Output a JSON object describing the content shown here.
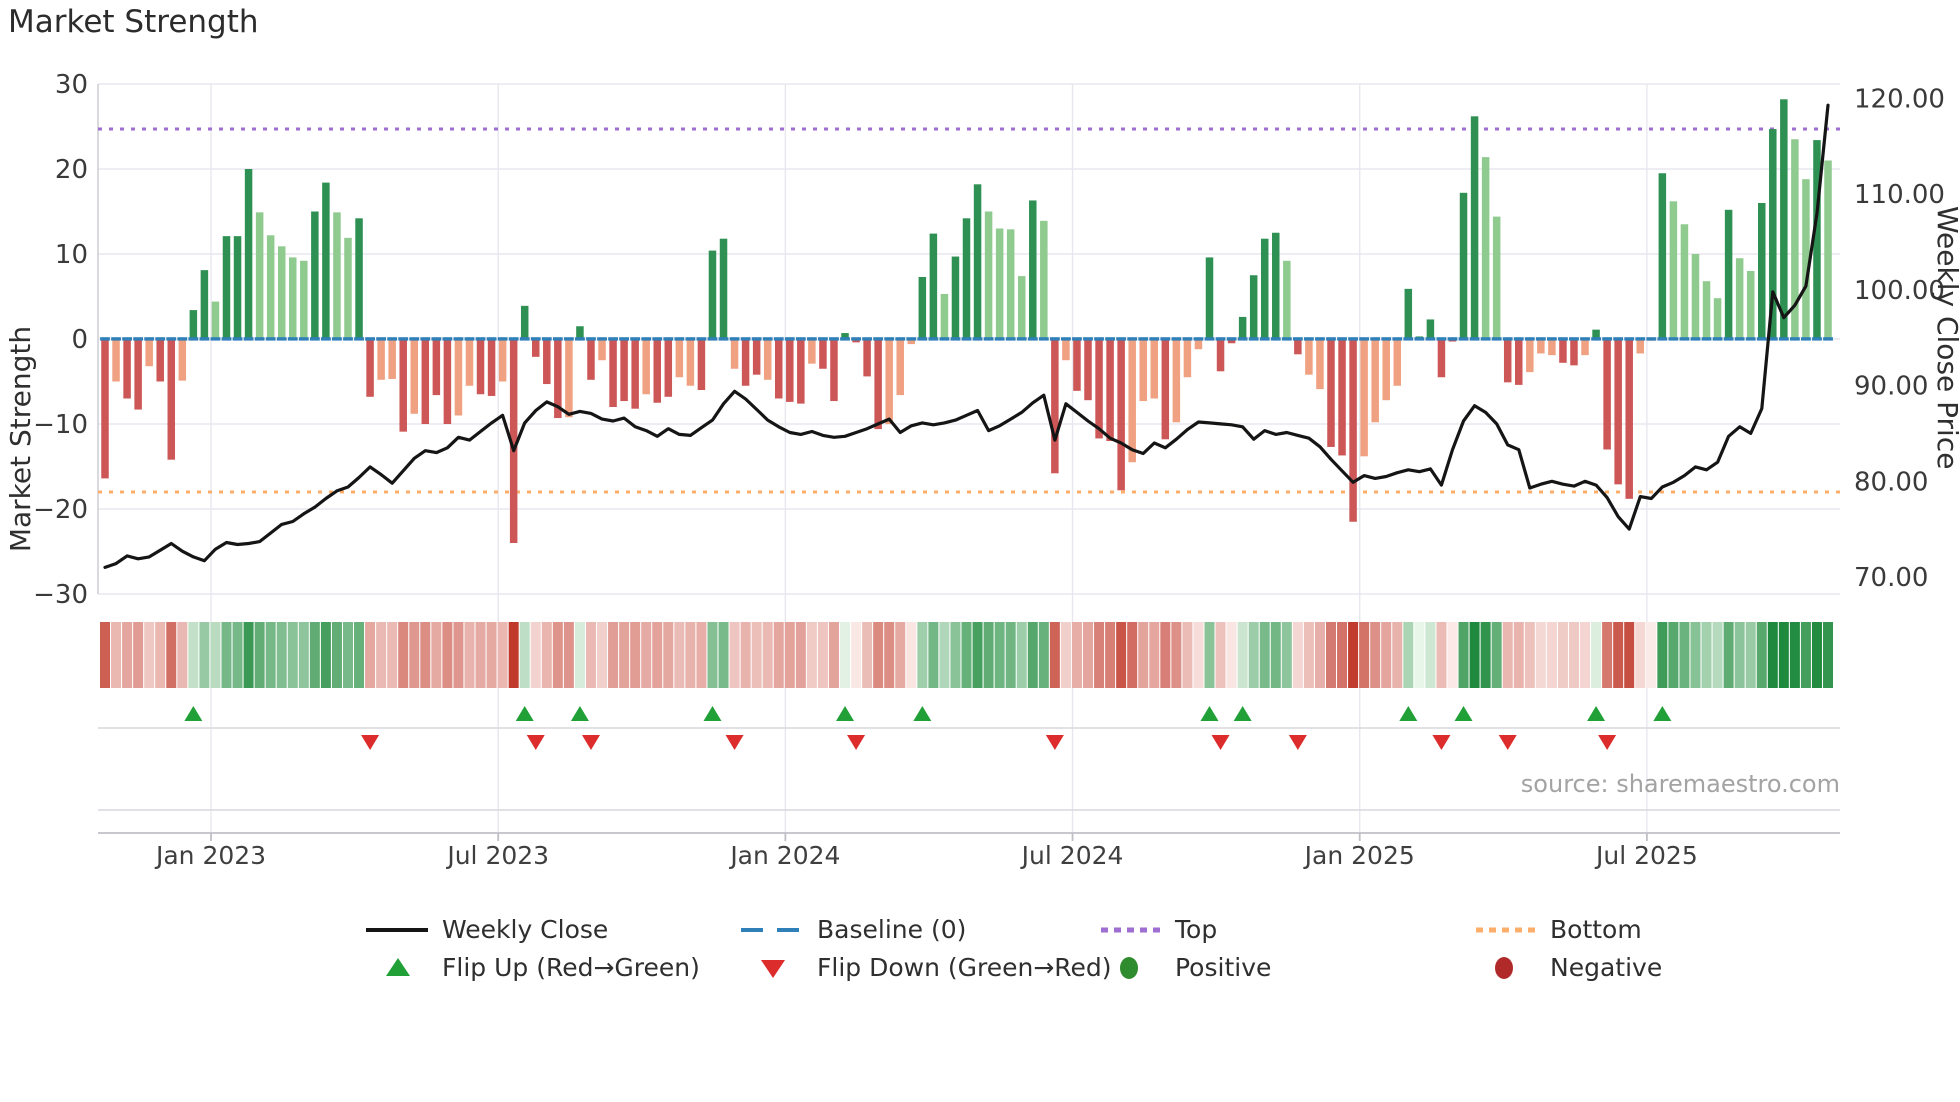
{
  "title": "Market Strength",
  "source": "source: sharemaestro.com",
  "left_axis": {
    "label": "Market Strength",
    "ticks": [
      "30",
      "20",
      "10",
      "0",
      "−10",
      "−20",
      "−30"
    ],
    "tick_values": [
      30,
      20,
      10,
      0,
      -10,
      -20,
      -30
    ]
  },
  "right_axis": {
    "label": "Weekly Close Price",
    "ticks": [
      "120.00",
      "110.00",
      "100.00",
      "90.00",
      "80.00",
      "70.00"
    ],
    "tick_values": [
      120,
      110,
      100,
      90,
      80,
      70
    ]
  },
  "x_axis": {
    "ticks": [
      "Jan 2023",
      "Jul 2023",
      "Jan 2024",
      "Jul 2024",
      "Jan 2025",
      "Jul 2025"
    ],
    "tick_week_index": [
      9.6,
      35.6,
      61.6,
      87.6,
      113.6,
      139.6
    ]
  },
  "legend": {
    "row1": [
      {
        "label": "Weekly Close",
        "swatch": "line-black"
      },
      {
        "label": "Baseline (0)",
        "swatch": "dash-blue"
      },
      {
        "label": "Top",
        "swatch": "dot-purple"
      },
      {
        "label": "Bottom",
        "swatch": "dot-orange"
      }
    ],
    "row2": [
      {
        "label": "Flip Up (Red→Green)",
        "swatch": "triangle-up-green"
      },
      {
        "label": "Flip Down (Green→Red)",
        "swatch": "triangle-down-red"
      },
      {
        "label": "Positive",
        "swatch": "circle-green"
      },
      {
        "label": "Negative",
        "swatch": "circle-darkred"
      }
    ]
  },
  "colors": {
    "bar_green_dark": "#2e9153",
    "bar_green_light": "#8fca8f",
    "bar_red_dark": "#cd5757",
    "bar_red_light": "#f0a181",
    "baseline_blue": "#2f7fb8",
    "top_purple": "#9e6fd0",
    "bottom_orange": "#fdae6b",
    "line_black": "#151515",
    "flip_green": "#21a038",
    "flip_red": "#dd2c2c",
    "positive_dot": "#2e8b2e",
    "negative_dot": "#b02a2a",
    "grid": "#e7e7ef",
    "spine": "#c9c9cf",
    "axis_text": "#3a3a3a",
    "source_text": "#a3a3a3",
    "heat_green_max": "#1f8a3d",
    "heat_green_min": "#eef8ee",
    "heat_red_max": "#c0392b",
    "heat_red_min": "#fcefec"
  },
  "chart_data": {
    "type": "bar+line",
    "frequency": "weekly",
    "start_week": "2022-10-24",
    "n_weeks": 157,
    "title": "Market Strength",
    "ylabel_left": "Market Strength",
    "ylabel_right": "Weekly Close Price",
    "ylim_left": [
      -30,
      30
    ],
    "ylim_right": [
      70,
      120
    ],
    "baseline": 0,
    "top_line": 24.7,
    "bottom_line": -18.0,
    "grid": true,
    "legend_position": "bottom",
    "strength_bars": [
      -16.4,
      -5.0,
      -7.0,
      -8.3,
      -3.2,
      -5.0,
      -14.2,
      -4.9,
      3.4,
      8.1,
      4.4,
      12.1,
      12.1,
      20.0,
      14.9,
      12.2,
      10.9,
      9.6,
      9.2,
      15.0,
      18.4,
      14.9,
      11.9,
      14.2,
      -6.8,
      -4.8,
      -4.7,
      -10.9,
      -8.8,
      -10.0,
      -6.6,
      -10.0,
      -9.0,
      -5.5,
      -6.5,
      -6.7,
      -5.0,
      -24.0,
      3.9,
      -2.1,
      -5.3,
      -9.3,
      -9.2,
      1.5,
      -4.8,
      -2.5,
      -8.0,
      -7.3,
      -8.2,
      -6.5,
      -7.5,
      -6.8,
      -4.5,
      -5.5,
      -6.0,
      10.4,
      11.8,
      -3.5,
      -5.5,
      -4.2,
      -4.8,
      -7.0,
      -7.4,
      -7.6,
      -2.9,
      -3.5,
      -7.3,
      0.7,
      -0.4,
      -4.4,
      -10.6,
      -10.0,
      -6.6,
      -0.6,
      7.3,
      12.4,
      5.3,
      9.7,
      14.2,
      18.2,
      15.0,
      13.0,
      12.9,
      7.4,
      16.3,
      13.9,
      -15.8,
      -2.5,
      -6.1,
      -7.2,
      -11.7,
      -12.0,
      -17.8,
      -14.5,
      -7.3,
      -7.0,
      -11.8,
      -9.8,
      -4.5,
      -1.2,
      9.6,
      -3.8,
      -0.5,
      2.6,
      7.5,
      11.8,
      12.5,
      9.2,
      -1.8,
      -4.2,
      -5.9,
      -12.7,
      -13.7,
      -21.5,
      -13.8,
      -9.8,
      -7.2,
      -5.5,
      5.9,
      0.3,
      2.3,
      -4.5,
      -0.3,
      17.2,
      26.2,
      21.4,
      14.4,
      -5.1,
      -5.4,
      -3.9,
      -1.7,
      -1.9,
      -2.8,
      -3.1,
      -1.9,
      1.1,
      -13.0,
      -17.1,
      -18.8,
      -1.7,
      -0.2,
      19.5,
      16.2,
      13.5,
      10.0,
      6.8,
      4.8,
      15.2,
      9.5,
      8.0,
      16.0,
      24.7,
      28.2,
      23.5,
      18.8,
      23.4,
      21.0
    ],
    "bar_shades": [
      "d",
      "l",
      "d",
      "d",
      "l",
      "d",
      "d",
      "l",
      "d",
      "d",
      "l",
      "d",
      "d",
      "d",
      "l",
      "l",
      "l",
      "l",
      "l",
      "d",
      "d",
      "l",
      "l",
      "d",
      "d",
      "l",
      "l",
      "d",
      "l",
      "d",
      "d",
      "d",
      "l",
      "l",
      "d",
      "d",
      "l",
      "d",
      "d",
      "d",
      "d",
      "d",
      "l",
      "d",
      "d",
      "l",
      "d",
      "d",
      "d",
      "l",
      "d",
      "d",
      "l",
      "l",
      "d",
      "d",
      "d",
      "l",
      "d",
      "d",
      "l",
      "d",
      "d",
      "d",
      "l",
      "d",
      "d",
      "d",
      "d",
      "d",
      "d",
      "l",
      "l",
      "l",
      "d",
      "d",
      "l",
      "d",
      "d",
      "d",
      "l",
      "l",
      "l",
      "l",
      "d",
      "l",
      "d",
      "l",
      "d",
      "d",
      "d",
      "d",
      "d",
      "l",
      "l",
      "l",
      "d",
      "l",
      "l",
      "l",
      "d",
      "d",
      "d",
      "d",
      "d",
      "d",
      "d",
      "l",
      "d",
      "l",
      "l",
      "d",
      "d",
      "d",
      "l",
      "l",
      "l",
      "l",
      "d",
      "d",
      "d",
      "d",
      "d",
      "d",
      "d",
      "l",
      "l",
      "d",
      "d",
      "l",
      "l",
      "l",
      "d",
      "d",
      "l",
      "d",
      "d",
      "d",
      "d",
      "l",
      "l",
      "d",
      "l",
      "l",
      "l",
      "l",
      "l",
      "d",
      "l",
      "l",
      "d",
      "d",
      "d",
      "l",
      "l",
      "d",
      "l"
    ],
    "weekly_close": [
      71.0,
      71.4,
      72.2,
      71.9,
      72.1,
      72.8,
      73.5,
      72.7,
      72.1,
      71.7,
      72.9,
      73.6,
      73.4,
      73.5,
      73.7,
      74.6,
      75.5,
      75.8,
      76.6,
      77.3,
      78.2,
      79.0,
      79.4,
      80.4,
      81.5,
      80.7,
      79.8,
      81.1,
      82.4,
      83.2,
      83.0,
      83.5,
      84.6,
      84.3,
      85.2,
      86.1,
      86.9,
      83.2,
      86.1,
      87.4,
      88.3,
      87.8,
      87.0,
      87.3,
      87.1,
      86.5,
      86.3,
      86.6,
      85.7,
      85.3,
      84.7,
      85.5,
      84.9,
      84.8,
      85.6,
      86.4,
      88.1,
      89.4,
      88.6,
      87.5,
      86.4,
      85.7,
      85.1,
      84.9,
      85.2,
      84.8,
      84.6,
      84.7,
      85.1,
      85.5,
      86.0,
      86.5,
      85.1,
      85.8,
      86.1,
      85.9,
      86.1,
      86.4,
      86.9,
      87.4,
      85.3,
      85.8,
      86.5,
      87.2,
      88.2,
      89.0,
      84.3,
      88.1,
      87.2,
      86.3,
      85.5,
      84.5,
      84.0,
      83.3,
      82.9,
      84.0,
      83.5,
      84.4,
      85.4,
      86.2,
      86.1,
      86.0,
      85.9,
      85.7,
      84.4,
      85.3,
      84.9,
      85.1,
      84.8,
      84.5,
      83.6,
      82.3,
      81.1,
      79.9,
      80.6,
      80.3,
      80.5,
      80.9,
      81.2,
      81.0,
      81.3,
      79.6,
      83.3,
      86.3,
      87.9,
      87.2,
      86.0,
      83.8,
      83.3,
      79.3,
      79.7,
      80.0,
      79.7,
      79.5,
      80.0,
      79.6,
      78.3,
      76.3,
      75.0,
      78.4,
      78.2,
      79.4,
      79.9,
      80.6,
      81.5,
      81.2,
      82.0,
      84.7,
      85.7,
      85.0,
      87.6,
      99.8,
      97.1,
      98.4,
      100.4,
      108.0,
      119.3
    ],
    "flip_up_weeks": [
      9,
      39,
      44,
      56,
      68,
      75,
      101,
      104,
      119,
      124,
      136,
      142
    ],
    "flip_down_weeks": [
      25,
      40,
      45,
      58,
      69,
      87,
      102,
      109,
      122,
      128,
      137
    ]
  }
}
